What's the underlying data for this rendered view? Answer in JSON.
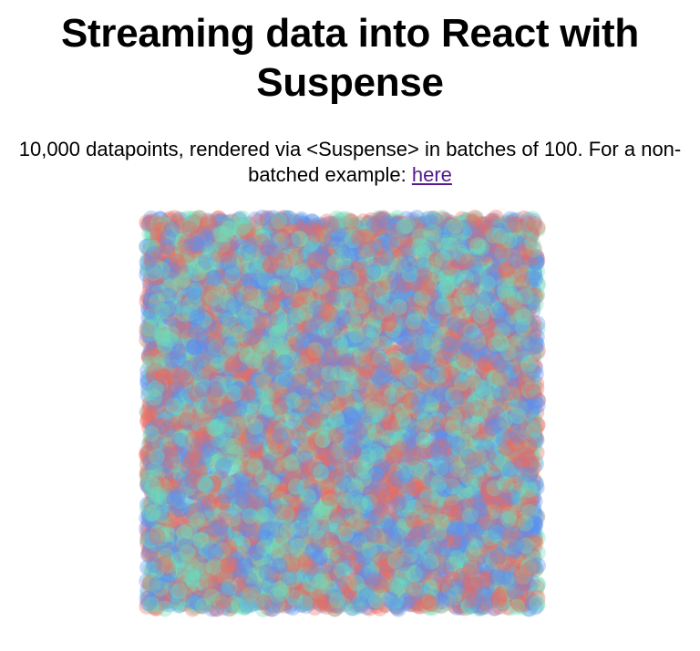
{
  "page": {
    "title": "Streaming data into React with Suspense",
    "subtitle_text": "10,000 datapoints, rendered via <Suspense> in batches of 100. For a non-batched example: ",
    "link_label": "here"
  },
  "plot": {
    "point_count": 10000,
    "batch_size": 100,
    "colors": [
      "#ee6b5e",
      "#5b8ef0",
      "#6fdcb6"
    ],
    "point_opacity": 0.35
  }
}
